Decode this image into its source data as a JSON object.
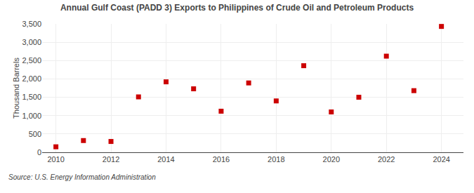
{
  "chart_data": {
    "type": "scatter",
    "title": "Annual Gulf Coast (PADD 3) Exports to Philippines of Crude Oil and Petroleum Products",
    "ylabel": "Thousand Barrels",
    "source": "Source: U.S. Energy Information Administration",
    "x": [
      2010,
      2011,
      2012,
      2013,
      2014,
      2015,
      2016,
      2017,
      2018,
      2019,
      2020,
      2021,
      2022,
      2023,
      2024
    ],
    "values": [
      150,
      320,
      295,
      1510,
      1920,
      1730,
      1120,
      1890,
      1400,
      2360,
      1100,
      1500,
      2620,
      1680,
      3430
    ],
    "color": "#cc0000",
    "marker": "square",
    "xlim": [
      2009.5,
      2024.8
    ],
    "ylim": [
      0,
      3500
    ],
    "xticks": [
      2010,
      2012,
      2014,
      2016,
      2018,
      2020,
      2022,
      2024
    ],
    "yticks": [
      0,
      500,
      {
        "value": 1000,
        "label": "1,000"
      },
      {
        "value": 1500,
        "label": "1,500"
      },
      {
        "value": 2000,
        "label": "2,000"
      },
      {
        "value": 2500,
        "label": "2,500"
      },
      {
        "value": 3000,
        "label": "3,000"
      },
      {
        "value": 3500,
        "label": "3,500"
      }
    ],
    "grid": true
  }
}
